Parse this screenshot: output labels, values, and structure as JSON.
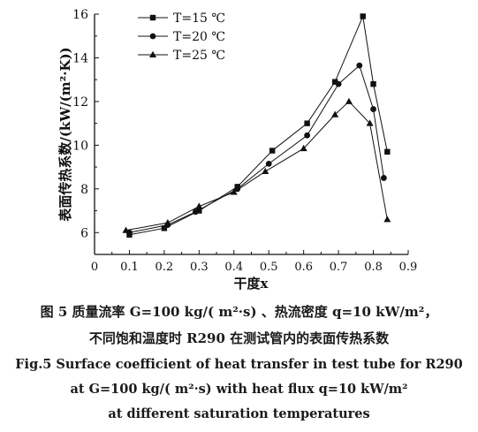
{
  "chart_data": {
    "type": "line",
    "xlabel": "干度x",
    "ylabel": "表面传热系数/(kW/(m²·K))",
    "xlim": [
      0,
      0.9
    ],
    "ylim": [
      5,
      16
    ],
    "x_ticks": [
      "0",
      "0.1",
      "0.2",
      "0.3",
      "0.4",
      "0.5",
      "0.6",
      "0.7",
      "0.8",
      "0.9"
    ],
    "y_ticks": [
      "6",
      "8",
      "10",
      "12",
      "14",
      "16"
    ],
    "grid": false,
    "legend_position": "top-left",
    "series": [
      {
        "name": "T=15 ℃",
        "marker": "square",
        "x": [
          0.1,
          0.2,
          0.3,
          0.41,
          0.51,
          0.61,
          0.69,
          0.77,
          0.8,
          0.84
        ],
        "y": [
          5.9,
          6.2,
          7.0,
          8.1,
          9.75,
          11.0,
          12.9,
          15.9,
          12.8,
          9.7
        ]
      },
      {
        "name": "T=20 ℃",
        "marker": "circle",
        "x": [
          0.1,
          0.21,
          0.29,
          0.41,
          0.5,
          0.61,
          0.7,
          0.76,
          0.8,
          0.83
        ],
        "y": [
          6.0,
          6.35,
          6.95,
          8.0,
          9.15,
          10.45,
          12.8,
          13.65,
          11.65,
          8.5
        ]
      },
      {
        "name": "T=25 ℃",
        "marker": "triangle",
        "x": [
          0.09,
          0.21,
          0.3,
          0.4,
          0.49,
          0.6,
          0.69,
          0.73,
          0.79,
          0.84
        ],
        "y": [
          6.1,
          6.45,
          7.2,
          7.85,
          8.8,
          9.85,
          11.4,
          12.0,
          11.0,
          6.6
        ]
      }
    ]
  },
  "caption": {
    "cn_line1": "图 5 质量流率 G=100 kg/( m²·s) 、热流密度 q=10 kW/m²，",
    "cn_line2": "不同饱和温度时 R290 在测试管内的表面传热系数",
    "en_line1": "Fig.5 Surface coefficient of heat transfer in test tube for R290",
    "en_line2": "at G=100 kg/( m²·s)  with heat flux q=10 kW/m²",
    "en_line3": "at different saturation temperatures"
  }
}
